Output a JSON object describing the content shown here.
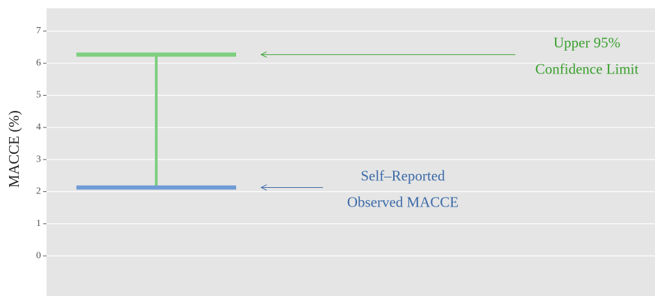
{
  "chart_data": {
    "type": "interval",
    "ylabel": "MACCE (%)",
    "ylim": [
      -1.25,
      7.71
    ],
    "yticks": [
      0,
      1,
      2,
      3,
      4,
      5,
      6,
      7
    ],
    "grid": true,
    "series": [
      {
        "name": [
          "Upper 95%",
          "Confidence Limit"
        ],
        "color": "#7fcf7f",
        "values": [
          6.27
        ]
      },
      {
        "name": [
          "Self–Reported",
          "Observed MACCE"
        ],
        "color": "#6f9bd6",
        "values": [
          2.13
        ]
      }
    ],
    "label_colors": [
      "#3aa02e",
      "#3b6aa8"
    ]
  }
}
